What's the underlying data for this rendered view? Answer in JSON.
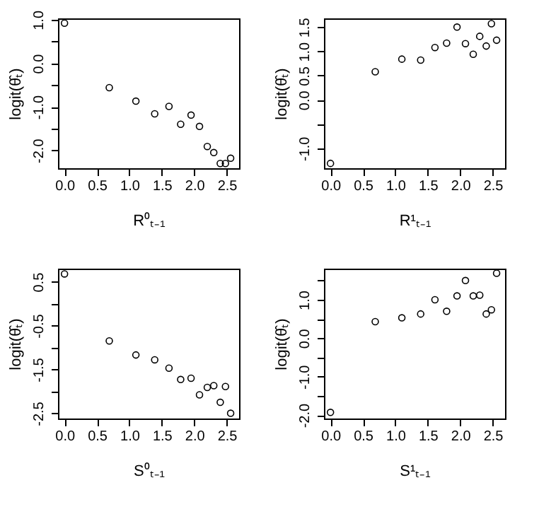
{
  "chart_data": [
    {
      "type": "scatter",
      "xlabel": "R⁰ₜ₋₁",
      "ylabel": "logit(θ̂ₜ)",
      "marker": "circle",
      "grid": false,
      "xlim": [
        -0.1,
        2.69
      ],
      "ylim": [
        -2.41,
        1.03
      ],
      "xticks": [
        {
          "value": 0,
          "label": "0.0"
        },
        0.5,
        {
          "value": 1,
          "label": "1.0"
        },
        1.5,
        {
          "value": 2,
          "label": "2.0"
        },
        2.5
      ],
      "yticks": [
        {
          "value": 1,
          "label": "1.0"
        },
        {
          "value": 0.5,
          "label": null
        },
        {
          "value": 0,
          "label": "0.0"
        },
        {
          "value": -0.5,
          "label": null
        },
        {
          "value": -1,
          "label": "-1.0"
        },
        {
          "value": -1.5,
          "label": null
        },
        {
          "value": -2,
          "label": "-2.0"
        }
      ],
      "x": [
        0,
        0.69,
        1.1,
        1.39,
        1.61,
        1.79,
        1.95,
        2.08,
        2.2,
        2.3,
        2.4,
        2.48,
        2.56
      ],
      "series": [
        {
          "color": "#000000",
          "values": [
            0.92,
            -0.56,
            -0.87,
            -1.16,
            -0.99,
            -1.4,
            -1.19,
            -1.45,
            -1.91,
            -2.05,
            -2.3,
            -2.3,
            -2.18
          ]
        }
      ]
    },
    {
      "type": "scatter",
      "xlabel": "R¹ₜ₋₁",
      "ylabel": "logit(θ̂ₜ)",
      "marker": "circle",
      "grid": false,
      "xlim": [
        -0.1,
        2.69
      ],
      "ylim": [
        -1.41,
        1.68
      ],
      "xticks": [
        {
          "value": 0,
          "label": "0.0"
        },
        0.5,
        {
          "value": 1,
          "label": "1.0"
        },
        1.5,
        {
          "value": 2,
          "label": "2.0"
        },
        2.5
      ],
      "yticks": [
        1.5,
        {
          "value": 1,
          "label": "1.0"
        },
        0.5,
        {
          "value": 0,
          "label": "0.0"
        },
        {
          "value": -0.5,
          "label": null
        },
        {
          "value": -1,
          "label": "-1.0"
        }
      ],
      "x": [
        0,
        0.69,
        1.1,
        1.39,
        1.61,
        1.79,
        1.95,
        2.08,
        2.2,
        2.3,
        2.4,
        2.48,
        2.56
      ],
      "series": [
        {
          "color": "#000000",
          "values": [
            -1.31,
            0.58,
            0.84,
            0.82,
            1.08,
            1.17,
            1.5,
            1.16,
            0.94,
            1.31,
            1.11,
            1.57,
            1.23
          ]
        }
      ]
    },
    {
      "type": "scatter",
      "xlabel": "S⁰ₜ₋₁",
      "ylabel": "logit(θ̂ₜ)",
      "marker": "circle",
      "grid": false,
      "xlim": [
        -0.1,
        2.69
      ],
      "ylim": [
        -2.62,
        0.8
      ],
      "xticks": [
        {
          "value": 0,
          "label": "0.0"
        },
        0.5,
        {
          "value": 1,
          "label": "1.0"
        },
        1.5,
        {
          "value": 2,
          "label": "2.0"
        },
        2.5
      ],
      "yticks": [
        0.5,
        {
          "value": 0,
          "label": null
        },
        -0.5,
        {
          "value": -1,
          "label": null
        },
        -1.5,
        {
          "value": -2,
          "label": null
        },
        -2.5
      ],
      "x": [
        0,
        0.69,
        1.1,
        1.39,
        1.61,
        1.79,
        1.95,
        2.08,
        2.2,
        2.3,
        2.4,
        2.48,
        2.56
      ],
      "series": [
        {
          "color": "#000000",
          "values": [
            0.68,
            -0.85,
            -1.17,
            -1.28,
            -1.47,
            -1.73,
            -1.7,
            -2.08,
            -1.91,
            -1.87,
            -2.25,
            -1.89,
            -2.5
          ]
        }
      ]
    },
    {
      "type": "scatter",
      "xlabel": "S¹ₜ₋₁",
      "ylabel": "logit(θ̂ₜ)",
      "marker": "circle",
      "grid": false,
      "xlim": [
        -0.1,
        2.69
      ],
      "ylim": [
        -2.09,
        1.81
      ],
      "xticks": [
        {
          "value": 0,
          "label": "0.0"
        },
        0.5,
        {
          "value": 1,
          "label": "1.0"
        },
        1.5,
        {
          "value": 2,
          "label": "2.0"
        },
        2.5
      ],
      "yticks": [
        {
          "value": 1.5,
          "label": null
        },
        {
          "value": 1,
          "label": "1.0"
        },
        {
          "value": 0.5,
          "label": null
        },
        {
          "value": 0,
          "label": "0.0"
        },
        {
          "value": -0.5,
          "label": null
        },
        {
          "value": -1,
          "label": "-1.0"
        },
        {
          "value": -1.5,
          "label": null
        },
        {
          "value": -2,
          "label": "-2.0"
        }
      ],
      "x": [
        0,
        0.69,
        1.1,
        1.39,
        1.61,
        1.79,
        1.95,
        2.08,
        2.2,
        2.3,
        2.4,
        2.48,
        2.56
      ],
      "series": [
        {
          "color": "#000000",
          "values": [
            -1.93,
            0.43,
            0.53,
            0.63,
            1.0,
            0.7,
            1.1,
            1.5,
            1.1,
            1.12,
            0.63,
            0.74,
            1.69
          ]
        }
      ]
    }
  ]
}
